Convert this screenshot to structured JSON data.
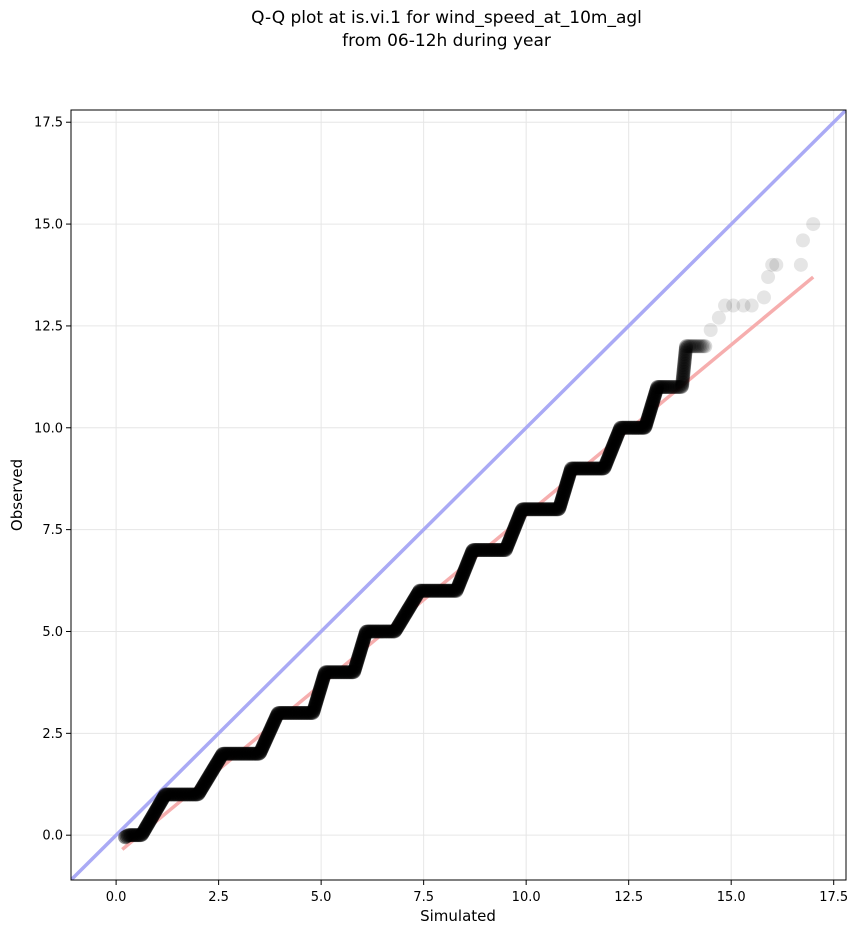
{
  "chart_data": {
    "type": "scatter",
    "title": [
      "Q-Q plot at is.vi.1 for wind_speed_at_10m_agl",
      "from 06-12h during year"
    ],
    "xlabel": "Simulated",
    "ylabel": "Observed",
    "xlim": [
      -1.1,
      17.8
    ],
    "ylim": [
      -1.1,
      17.8
    ],
    "xticks": [
      0.0,
      2.5,
      5.0,
      7.5,
      10.0,
      12.5,
      15.0,
      17.5
    ],
    "yticks": [
      0.0,
      2.5,
      5.0,
      7.5,
      10.0,
      12.5,
      15.0,
      17.5
    ],
    "xtick_labels": [
      "0.0",
      "2.5",
      "5.0",
      "7.5",
      "10.0",
      "12.5",
      "15.0",
      "17.5"
    ],
    "ytick_labels": [
      "0.0",
      "2.5",
      "5.0",
      "7.5",
      "10.0",
      "12.5",
      "15.0",
      "17.5"
    ],
    "grid": true,
    "colors": {
      "identity_line": "#aaaaf5",
      "fit_line": "#f5aaaa",
      "points": "#000000"
    },
    "identity_line": {
      "x": [
        -1.1,
        17.8
      ],
      "y": [
        -1.1,
        17.8
      ]
    },
    "fit_line": {
      "x": [
        0.15,
        17.0
      ],
      "y": [
        -0.35,
        13.7
      ]
    },
    "steps": [
      {
        "y": 0,
        "x_start": 0.3,
        "x_end": 0.62
      },
      {
        "y": 1,
        "x_start": 1.2,
        "x_end": 2.0
      },
      {
        "y": 2,
        "x_start": 2.6,
        "x_end": 3.5
      },
      {
        "y": 3,
        "x_start": 3.95,
        "x_end": 4.8
      },
      {
        "y": 4,
        "x_start": 5.1,
        "x_end": 5.8
      },
      {
        "y": 5,
        "x_start": 6.1,
        "x_end": 6.8
      },
      {
        "y": 6,
        "x_start": 7.4,
        "x_end": 8.3
      },
      {
        "y": 7,
        "x_start": 8.7,
        "x_end": 9.5
      },
      {
        "y": 8,
        "x_start": 9.9,
        "x_end": 10.8
      },
      {
        "y": 9,
        "x_start": 11.1,
        "x_end": 11.9
      },
      {
        "y": 10,
        "x_start": 12.3,
        "x_end": 12.9
      },
      {
        "y": 11,
        "x_start": 13.2,
        "x_end": 13.8
      },
      {
        "y": 12,
        "x_start": 13.9,
        "x_end": 14.4
      }
    ],
    "outlier_points": [
      {
        "x": 14.5,
        "y": 12.4
      },
      {
        "x": 14.7,
        "y": 12.7
      },
      {
        "x": 14.85,
        "y": 13.0
      },
      {
        "x": 15.05,
        "y": 13.0
      },
      {
        "x": 15.3,
        "y": 13.0
      },
      {
        "x": 15.5,
        "y": 13.0
      },
      {
        "x": 15.8,
        "y": 13.2
      },
      {
        "x": 15.9,
        "y": 13.7
      },
      {
        "x": 16.0,
        "y": 14.0
      },
      {
        "x": 16.1,
        "y": 14.0
      },
      {
        "x": 16.7,
        "y": 14.0
      },
      {
        "x": 16.75,
        "y": 14.6
      },
      {
        "x": 17.0,
        "y": 15.0
      }
    ]
  }
}
